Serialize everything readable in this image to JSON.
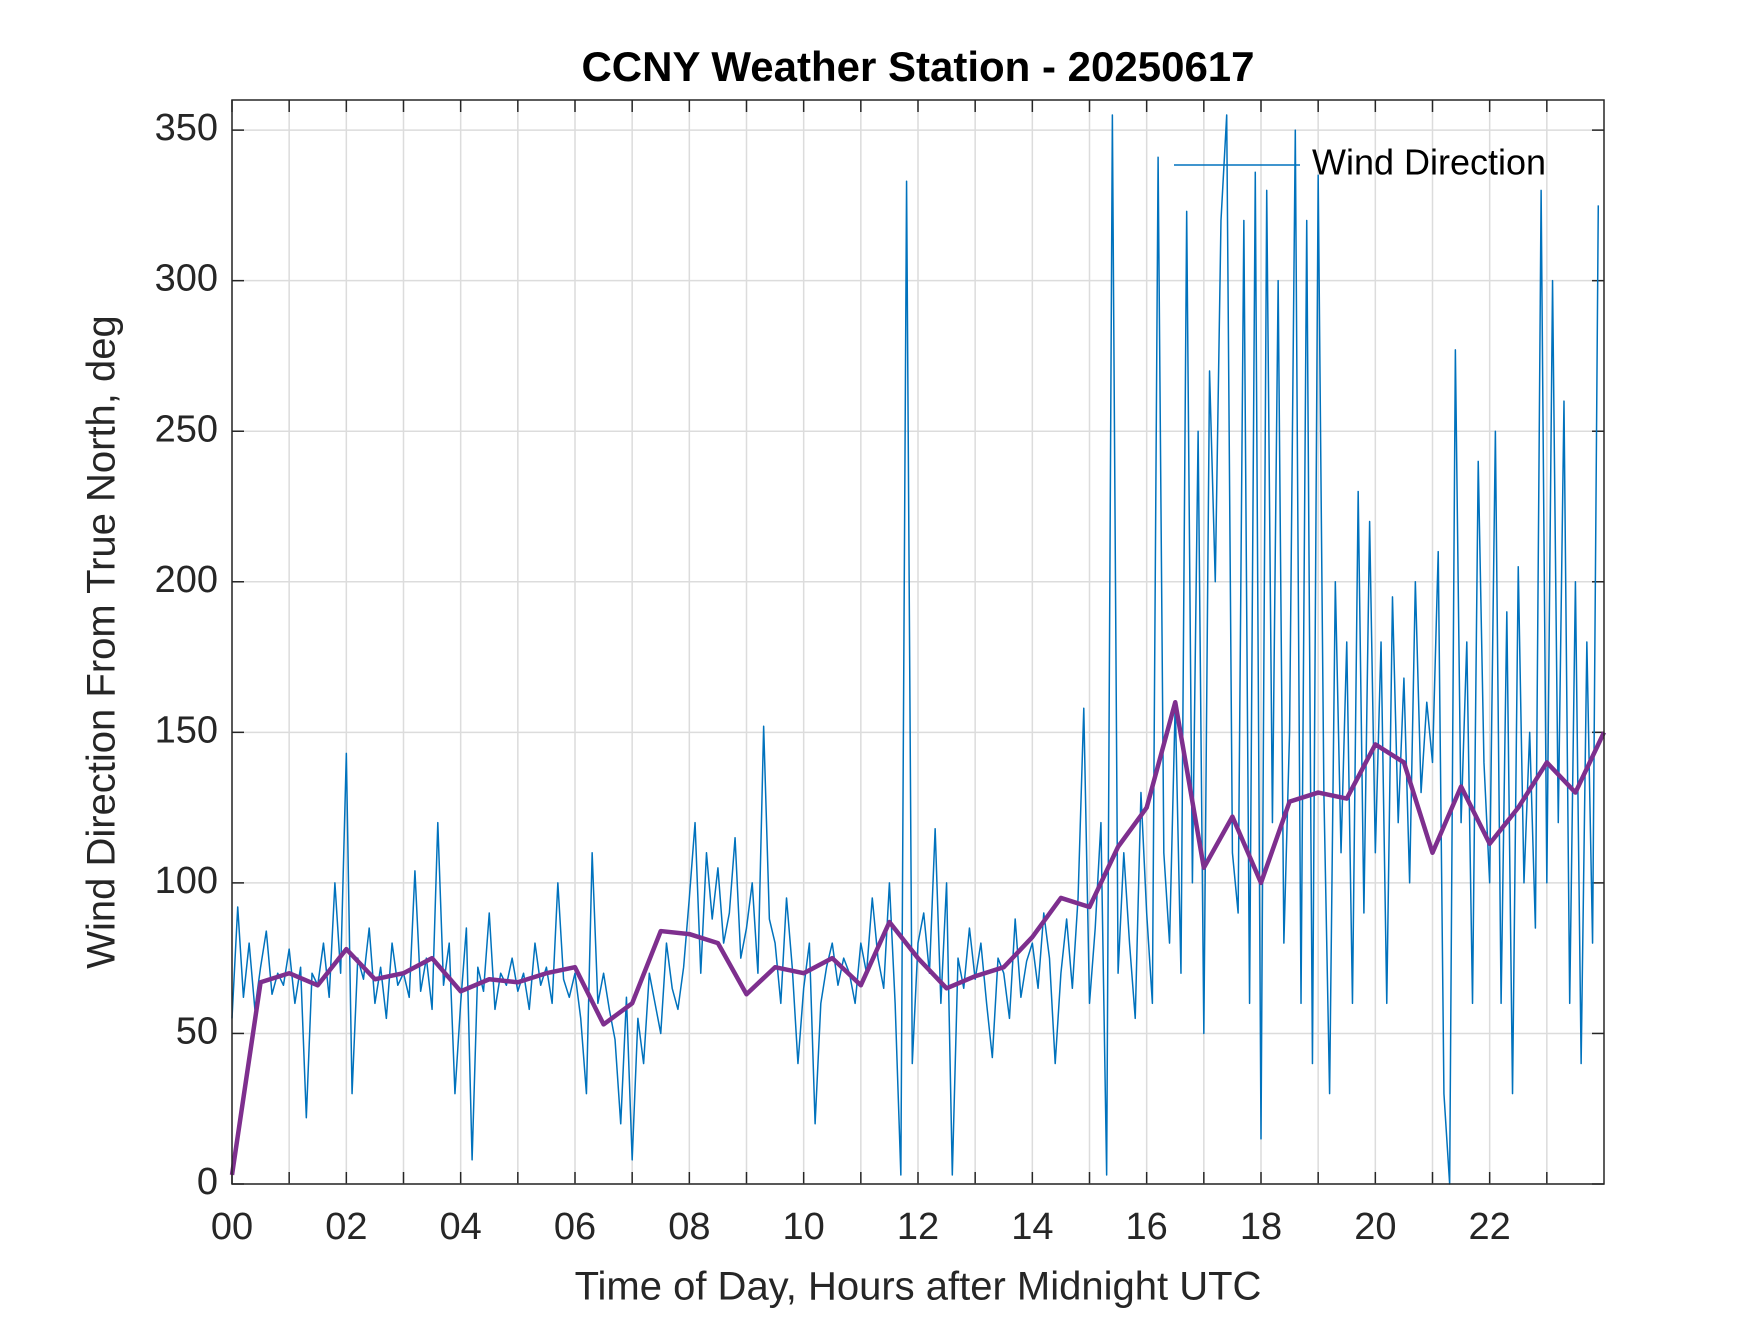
{
  "chart_data": {
    "type": "line",
    "title": "CCNY Weather Station - 20250617",
    "xlabel": "Time of Day, Hours after Midnight UTC",
    "ylabel": "Wind Direction From True North, deg",
    "xlim": [
      0,
      24
    ],
    "ylim": [
      0,
      360
    ],
    "xticks": [
      {
        "value": 0,
        "label": "00"
      },
      {
        "value": 2,
        "label": "02"
      },
      {
        "value": 4,
        "label": "04"
      },
      {
        "value": 6,
        "label": "06"
      },
      {
        "value": 8,
        "label": "08"
      },
      {
        "value": 10,
        "label": "10"
      },
      {
        "value": 12,
        "label": "12"
      },
      {
        "value": 14,
        "label": "14"
      },
      {
        "value": 16,
        "label": "16"
      },
      {
        "value": 18,
        "label": "18"
      },
      {
        "value": 20,
        "label": "20"
      },
      {
        "value": 22,
        "label": "22"
      }
    ],
    "x_minor_ticks": [
      1,
      3,
      5,
      7,
      9,
      11,
      13,
      15,
      17,
      19,
      21,
      23
    ],
    "yticks": [
      0,
      50,
      100,
      150,
      200,
      250,
      300,
      350
    ],
    "grid": true,
    "legend": "northeast",
    "series": [
      {
        "name": "Wind Direction",
        "color": "#0072BD",
        "width": 1.5,
        "x": [
          0,
          0.1,
          0.2,
          0.3,
          0.4,
          0.5,
          0.6,
          0.7,
          0.8,
          0.9,
          1,
          1.1,
          1.2,
          1.3,
          1.4,
          1.5,
          1.6,
          1.7,
          1.8,
          1.9,
          2,
          2.1,
          2.2,
          2.3,
          2.4,
          2.5,
          2.6,
          2.7,
          2.8,
          2.9,
          3,
          3.1,
          3.2,
          3.3,
          3.4,
          3.5,
          3.6,
          3.7,
          3.8,
          3.9,
          4,
          4.1,
          4.2,
          4.3,
          4.4,
          4.5,
          4.6,
          4.7,
          4.8,
          4.9,
          5,
          5.1,
          5.2,
          5.3,
          5.4,
          5.5,
          5.6,
          5.7,
          5.8,
          5.9,
          6,
          6.1,
          6.2,
          6.3,
          6.4,
          6.5,
          6.6,
          6.7,
          6.8,
          6.9,
          7,
          7.1,
          7.2,
          7.3,
          7.4,
          7.5,
          7.6,
          7.7,
          7.8,
          7.9,
          8,
          8.1,
          8.2,
          8.3,
          8.4,
          8.5,
          8.6,
          8.7,
          8.8,
          8.9,
          9,
          9.1,
          9.2,
          9.3,
          9.4,
          9.5,
          9.6,
          9.7,
          9.8,
          9.9,
          10,
          10.1,
          10.2,
          10.3,
          10.4,
          10.5,
          10.6,
          10.7,
          10.8,
          10.9,
          11,
          11.1,
          11.2,
          11.3,
          11.4,
          11.5,
          11.6,
          11.7,
          11.8,
          11.9,
          12,
          12.1,
          12.2,
          12.3,
          12.4,
          12.5,
          12.6,
          12.7,
          12.8,
          12.9,
          13,
          13.1,
          13.2,
          13.3,
          13.4,
          13.5,
          13.6,
          13.7,
          13.8,
          13.9,
          14,
          14.1,
          14.2,
          14.3,
          14.4,
          14.5,
          14.6,
          14.7,
          14.8,
          14.9,
          15,
          15.1,
          15.2,
          15.3,
          15.4,
          15.5,
          15.6,
          15.7,
          15.8,
          15.9,
          16,
          16.1,
          16.2,
          16.3,
          16.4,
          16.5,
          16.6,
          16.7,
          16.8,
          16.9,
          17,
          17.1,
          17.2,
          17.3,
          17.4,
          17.5,
          17.6,
          17.7,
          17.8,
          17.9,
          18,
          18.1,
          18.2,
          18.3,
          18.4,
          18.5,
          18.6,
          18.7,
          18.8,
          18.9,
          19,
          19.1,
          19.2,
          19.3,
          19.4,
          19.5,
          19.6,
          19.7,
          19.8,
          19.9,
          20,
          20.1,
          20.2,
          20.3,
          20.4,
          20.5,
          20.6,
          20.7,
          20.8,
          20.9,
          21,
          21.1,
          21.2,
          21.3,
          21.4,
          21.5,
          21.6,
          21.7,
          21.8,
          21.9,
          22,
          22.1,
          22.2,
          22.3,
          22.4,
          22.5,
          22.6,
          22.7,
          22.8,
          22.9,
          23,
          23.1,
          23.2,
          23.3,
          23.4,
          23.5,
          23.6,
          23.7,
          23.8,
          23.9
        ],
        "values": [
          55,
          92,
          62,
          80,
          58,
          72,
          84,
          63,
          70,
          66,
          78,
          60,
          72,
          22,
          70,
          66,
          80,
          62,
          100,
          70,
          143,
          30,
          75,
          68,
          85,
          60,
          72,
          55,
          80,
          66,
          70,
          62,
          104,
          64,
          75,
          58,
          120,
          66,
          80,
          30,
          60,
          85,
          8,
          72,
          64,
          90,
          58,
          70,
          66,
          75,
          64,
          70,
          58,
          80,
          66,
          72,
          60,
          100,
          68,
          62,
          70,
          55,
          30,
          110,
          60,
          70,
          58,
          48,
          20,
          62,
          8,
          55,
          40,
          70,
          60,
          50,
          80,
          65,
          58,
          72,
          95,
          120,
          70,
          110,
          88,
          105,
          80,
          90,
          115,
          75,
          85,
          100,
          70,
          152,
          88,
          80,
          60,
          95,
          72,
          40,
          65,
          80,
          20,
          60,
          72,
          80,
          66,
          75,
          70,
          60,
          80,
          70,
          95,
          75,
          65,
          100,
          60,
          3,
          333,
          40,
          80,
          90,
          70,
          118,
          60,
          100,
          3,
          75,
          65,
          85,
          68,
          80,
          60,
          42,
          75,
          70,
          55,
          88,
          62,
          74,
          80,
          65,
          90,
          75,
          40,
          70,
          88,
          65,
          95,
          158,
          60,
          85,
          120,
          3,
          355,
          70,
          110,
          80,
          55,
          130,
          90,
          60,
          341,
          110,
          80,
          160,
          70,
          323,
          100,
          250,
          50,
          270,
          200,
          320,
          355,
          110,
          90,
          320,
          60,
          336,
          15,
          330,
          120,
          300,
          80,
          150,
          350,
          60,
          320,
          40,
          335,
          130,
          30,
          200,
          110,
          180,
          60,
          230,
          90,
          220,
          110,
          180,
          60,
          195,
          120,
          168,
          100,
          200,
          130,
          160,
          140,
          210,
          30,
          0,
          277,
          120,
          180,
          60,
          240,
          140,
          100,
          250,
          60,
          190,
          30,
          205,
          100,
          150,
          85,
          330,
          100,
          300,
          120,
          260,
          60,
          200,
          40,
          180,
          80,
          325
        ]
      },
      {
        "color": "#7E2F8E",
        "width": 4.5,
        "x": [
          0,
          0.5,
          1,
          1.5,
          2,
          2.5,
          3,
          3.5,
          4,
          4.5,
          5,
          5.5,
          6,
          6.5,
          7,
          7.5,
          8,
          8.5,
          9,
          9.5,
          10,
          10.5,
          11,
          11.5,
          12,
          12.5,
          13,
          13.5,
          14,
          14.5,
          15,
          15.5,
          16,
          16.5,
          17,
          17.5,
          18,
          18.5,
          19,
          19.5,
          20,
          20.5,
          21,
          21.5,
          22,
          22.5,
          23,
          23.5,
          24
        ],
        "values": [
          3,
          67,
          70,
          66,
          78,
          68,
          70,
          75,
          64,
          68,
          67,
          70,
          72,
          53,
          60,
          84,
          83,
          80,
          63,
          72,
          70,
          75,
          66,
          87,
          75,
          65,
          69,
          72,
          82,
          95,
          92,
          112,
          125,
          160,
          105,
          122,
          100,
          127,
          130,
          128,
          146,
          140,
          110,
          132,
          113,
          125,
          140,
          130,
          150
        ]
      }
    ]
  }
}
